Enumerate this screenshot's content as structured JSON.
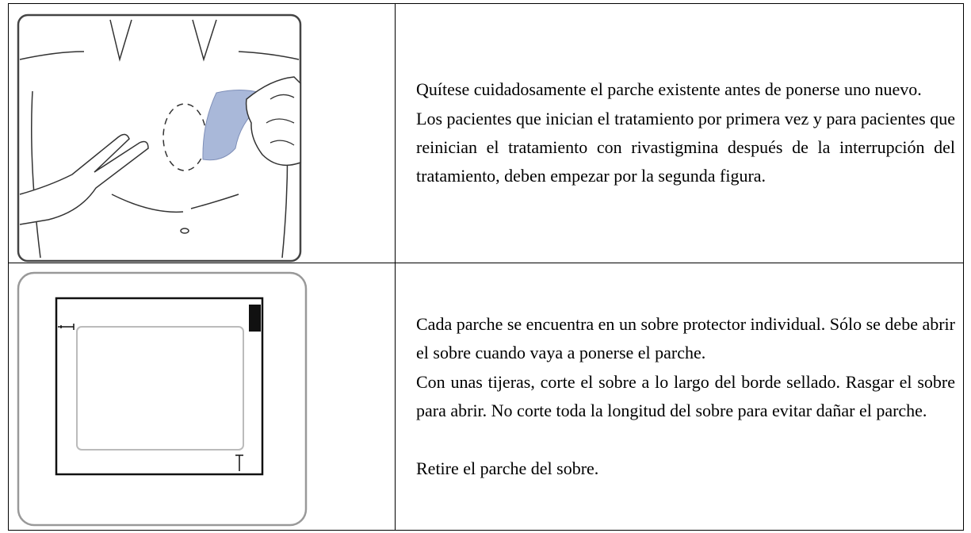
{
  "table": {
    "rows": [
      {
        "paragraphs": [
          "Quítese cuidadosamente el parche existente antes de ponerse uno nuevo.",
          "Los pacientes que inician el tratamiento por primera vez y para pacientes que reinician el tratamiento con rivastigmina después de la interrupción del tratamiento, deben empezar por la segunda figura."
        ]
      },
      {
        "paragraphs": [
          "Cada parche se encuentra en un sobre protector individual. Sólo se debe abrir el sobre cuando vaya a ponerse el parche.",
          "Con unas tijeras, corte el sobre a lo largo del borde sellado. Rasgar el sobre para abrir. No corte toda la longitud del sobre para evitar dañar el parche.",
          "Retire el parche del sobre."
        ]
      }
    ]
  }
}
